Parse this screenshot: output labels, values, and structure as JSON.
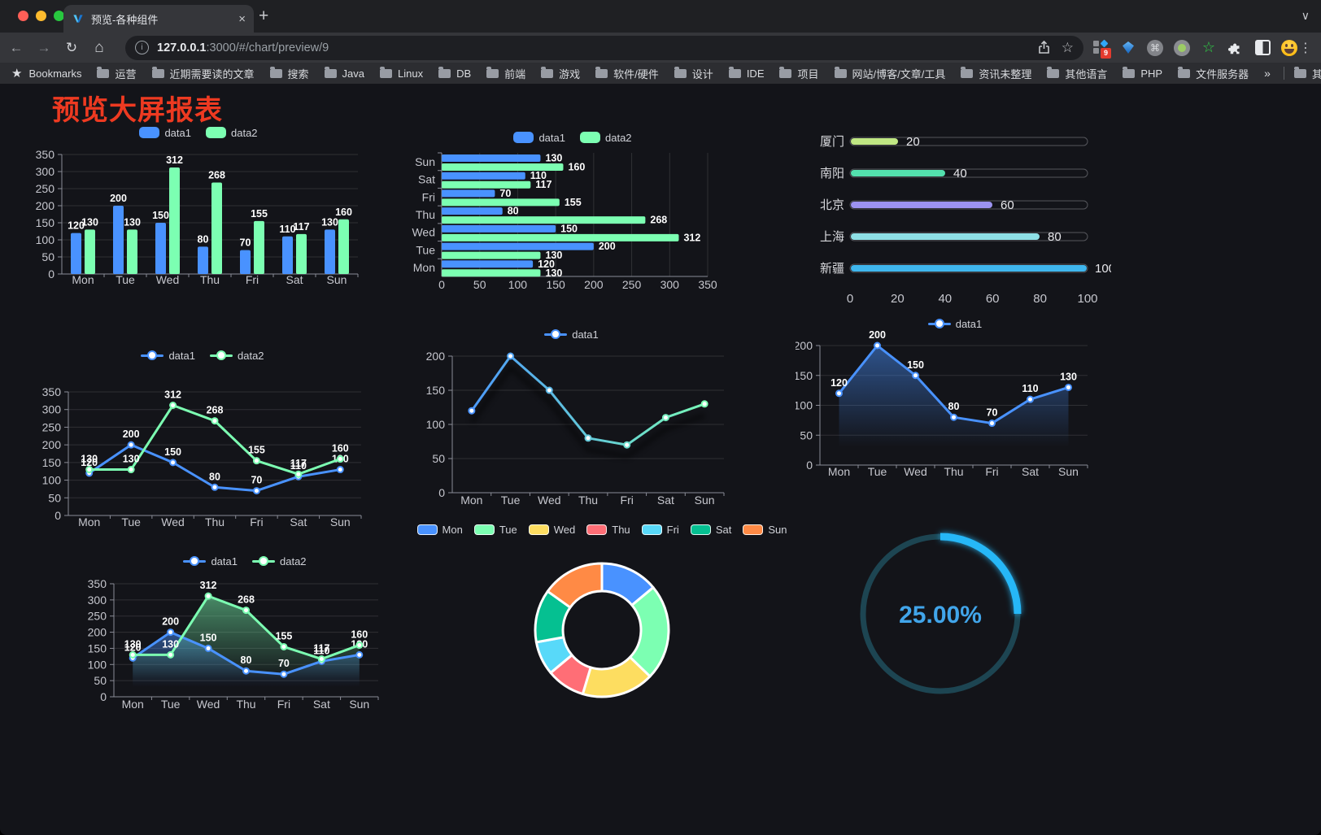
{
  "browser": {
    "window_controls": [
      "close",
      "minimize",
      "zoom"
    ],
    "tab_title": "预览-各种组件",
    "tab_close": "×",
    "new_tab": "+",
    "tab_overflow_chevron": "∨",
    "nav": {
      "back": "←",
      "forward": "→",
      "reload": "↻",
      "home": "⌂"
    },
    "url_host": "127.0.0.1",
    "url_rest": ":3000/#/chart/preview/9",
    "bookmark_star": "☆",
    "extension_badge_count": "9",
    "menu_kebab": "⋮",
    "bookmarks_bar": {
      "root_label": "Bookmarks",
      "folders": [
        "运营",
        "近期需要读的文章",
        "搜索",
        "Java",
        "Linux",
        "DB",
        "前端",
        "游戏",
        "软件/硬件",
        "设计",
        "IDE",
        "项目",
        "网站/博客/文章/工具",
        "资讯未整理",
        "其他语言",
        "PHP",
        "文件服务器"
      ],
      "overflow": "»",
      "other_bookmarks": "其他书签"
    }
  },
  "page": {
    "title": "预览大屏报表",
    "title_color": "#ee3a21"
  },
  "palette": {
    "data1": "#4992ff",
    "data2": "#7cffb2"
  },
  "chart_data": [
    {
      "id": "bar-vertical",
      "type": "bar",
      "categories": [
        "Mon",
        "Tue",
        "Wed",
        "Thu",
        "Fri",
        "Sat",
        "Sun"
      ],
      "series": [
        {
          "name": "data1",
          "color": "#4992ff",
          "values": [
            120,
            200,
            150,
            80,
            70,
            110,
            130
          ]
        },
        {
          "name": "data2",
          "color": "#7cffb2",
          "values": [
            130,
            130,
            312,
            268,
            155,
            117,
            160
          ]
        }
      ],
      "ylim": [
        0,
        350
      ],
      "yticks": [
        0,
        50,
        100,
        150,
        200,
        250,
        300,
        350
      ],
      "show_labels": true,
      "legend_position": "top"
    },
    {
      "id": "bar-horizontal",
      "type": "bar-horizontal",
      "categories_top_to_bottom": [
        "Sun",
        "Sat",
        "Fri",
        "Thu",
        "Wed",
        "Tue",
        "Mon"
      ],
      "series": [
        {
          "name": "data1",
          "color": "#4992ff",
          "values": [
            130,
            110,
            70,
            80,
            150,
            200,
            120
          ]
        },
        {
          "name": "data2",
          "color": "#7cffb2",
          "values": [
            160,
            117,
            155,
            268,
            312,
            130,
            130
          ]
        }
      ],
      "xlim": [
        0,
        350
      ],
      "xticks": [
        0,
        50,
        100,
        150,
        200,
        250,
        300,
        350
      ],
      "show_labels": true,
      "legend_position": "top"
    },
    {
      "id": "progress-bars",
      "type": "progress",
      "items": [
        {
          "label": "厦门",
          "value": 20,
          "color": "#c0e783"
        },
        {
          "label": "南阳",
          "value": 40,
          "color": "#53e0ad"
        },
        {
          "label": "北京",
          "value": 60,
          "color": "#9c93f0"
        },
        {
          "label": "上海",
          "value": 80,
          "color": "#8ee0e6"
        },
        {
          "label": "新疆",
          "value": 100,
          "color": "#3fb6ed"
        }
      ],
      "max": 100,
      "xticks": [
        0,
        20,
        40,
        60,
        80,
        100
      ]
    },
    {
      "id": "line-two",
      "type": "line",
      "categories": [
        "Mon",
        "Tue",
        "Wed",
        "Thu",
        "Fri",
        "Sat",
        "Sun"
      ],
      "series": [
        {
          "name": "data1",
          "color": "#4992ff",
          "values": [
            120,
            200,
            150,
            80,
            70,
            110,
            130
          ]
        },
        {
          "name": "data2",
          "color": "#7cffb2",
          "values": [
            130,
            130,
            312,
            268,
            155,
            117,
            160
          ]
        }
      ],
      "ylim": [
        0,
        350
      ],
      "yticks": [
        0,
        50,
        100,
        150,
        200,
        250,
        300,
        350
      ],
      "show_labels": true,
      "legend_position": "top"
    },
    {
      "id": "line-gradient",
      "type": "line",
      "categories": [
        "Mon",
        "Tue",
        "Wed",
        "Thu",
        "Fri",
        "Sat",
        "Sun"
      ],
      "series": [
        {
          "name": "data1",
          "gradient": [
            "#4992ff",
            "#7cffb2"
          ],
          "values": [
            120,
            200,
            150,
            80,
            70,
            110,
            130
          ]
        }
      ],
      "ylim": [
        0,
        200
      ],
      "yticks": [
        0,
        50,
        100,
        150,
        200
      ],
      "show_labels": false,
      "shadow": true,
      "legend_position": "top"
    },
    {
      "id": "area-single",
      "type": "line",
      "categories": [
        "Mon",
        "Tue",
        "Wed",
        "Thu",
        "Fri",
        "Sat",
        "Sun"
      ],
      "series": [
        {
          "name": "data1",
          "color": "#4992ff",
          "values": [
            120,
            200,
            150,
            80,
            70,
            110,
            130
          ],
          "area": true
        }
      ],
      "ylim": [
        0,
        200
      ],
      "yticks": [
        0,
        50,
        100,
        150,
        200
      ],
      "show_labels": true,
      "legend_position": "top"
    },
    {
      "id": "area-two",
      "type": "line",
      "categories": [
        "Mon",
        "Tue",
        "Wed",
        "Thu",
        "Fri",
        "Sat",
        "Sun"
      ],
      "series": [
        {
          "name": "data1",
          "color": "#4992ff",
          "values": [
            120,
            200,
            150,
            80,
            70,
            110,
            130
          ],
          "area": true
        },
        {
          "name": "data2",
          "color": "#7cffb2",
          "values": [
            130,
            130,
            312,
            268,
            155,
            117,
            160
          ],
          "area": true
        }
      ],
      "ylim": [
        0,
        350
      ],
      "yticks": [
        0,
        50,
        100,
        150,
        200,
        250,
        300,
        350
      ],
      "show_labels": true,
      "legend_position": "top"
    },
    {
      "id": "donut",
      "type": "pie",
      "inner_radius_ratio": 0.59,
      "items": [
        {
          "label": "Mon",
          "value": 120,
          "color": "#4992ff"
        },
        {
          "label": "Tue",
          "value": 200,
          "color": "#7cffb2"
        },
        {
          "label": "Wed",
          "value": 150,
          "color": "#fddd60"
        },
        {
          "label": "Thu",
          "value": 80,
          "color": "#ff6e76"
        },
        {
          "label": "Fri",
          "value": 70,
          "color": "#58d9f9"
        },
        {
          "label": "Sat",
          "value": 110,
          "color": "#05c091"
        },
        {
          "label": "Sun",
          "value": 130,
          "color": "#ff8a45"
        }
      ],
      "legend_position": "top",
      "border_color": "#ffffff"
    },
    {
      "id": "gauge",
      "type": "gauge",
      "value": 25,
      "display": "25.00%",
      "progress_color": "#28b7f7",
      "track_color": "#1d4552",
      "text_color": "#41a5ea",
      "start_angle_deg": 0,
      "direction": "clockwise"
    }
  ]
}
